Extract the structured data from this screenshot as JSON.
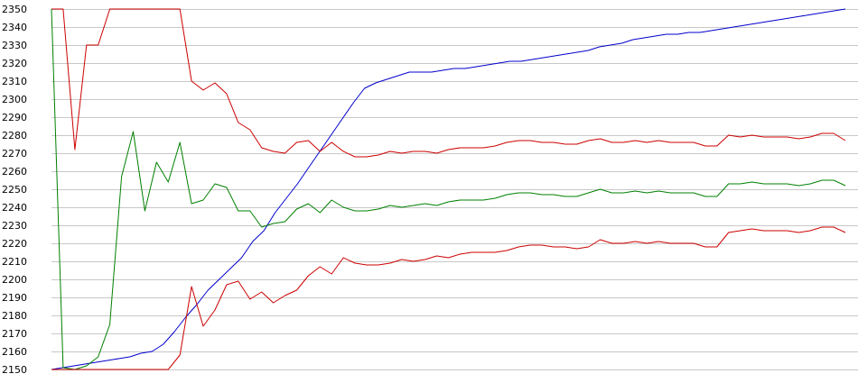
{
  "chart_data": {
    "type": "line",
    "title": "",
    "xlabel": "",
    "ylabel": "",
    "ylim": [
      2150,
      2350
    ],
    "yticks": [
      2150,
      2160,
      2170,
      2180,
      2190,
      2200,
      2210,
      2220,
      2230,
      2240,
      2250,
      2260,
      2270,
      2280,
      2290,
      2300,
      2310,
      2320,
      2330,
      2340,
      2350
    ],
    "xlim": [
      0,
      68
    ],
    "grid": true,
    "legend": "none",
    "series": [
      {
        "color": "#0000cc",
        "values": [
          2150,
          2151,
          2152,
          2153,
          2154,
          2155,
          2156,
          2157,
          2159,
          2160,
          2164,
          2171,
          2179,
          2186,
          2194,
          2200,
          2206,
          2212,
          2221,
          2227,
          2237,
          2245,
          2253,
          2262,
          2271,
          2280,
          2289,
          2298,
          2306,
          2309,
          2311,
          2313,
          2315,
          2315,
          2315,
          2316,
          2317,
          2317,
          2318,
          2319,
          2320,
          2321,
          2321,
          2322,
          2323,
          2324,
          2325,
          2326,
          2327,
          2329,
          2330,
          2331,
          2333,
          2334,
          2335,
          2336,
          2336,
          2337,
          2337,
          2338,
          2339,
          2340,
          2341,
          2342,
          2343,
          2344,
          2345,
          2346,
          2347,
          2348,
          2349,
          2350
        ]
      },
      {
        "color": "#008000",
        "values": [
          2350,
          2151,
          2150,
          2152,
          2157,
          2175,
          2257,
          2282,
          2238,
          2265,
          2254,
          2276,
          2242,
          2244,
          2253,
          2251,
          2238,
          2238,
          2229,
          2231,
          2232,
          2239,
          2242,
          2237,
          2244,
          2240,
          2238,
          2238,
          2239,
          2241,
          2240,
          2241,
          2242,
          2241,
          2243,
          2244,
          2244,
          2244,
          2245,
          2247,
          2248,
          2248,
          2247,
          2247,
          2246,
          2246,
          2248,
          2250,
          2248,
          2248,
          2249,
          2248,
          2249,
          2248,
          2248,
          2248,
          2246,
          2246,
          2253,
          2253,
          2254,
          2253,
          2253,
          2253,
          2252,
          2253,
          2255,
          2255,
          2252
        ]
      },
      {
        "color": "#cc0000",
        "values": [
          2350,
          2350,
          2272,
          2330,
          2330,
          2350,
          2350,
          2350,
          2350,
          2350,
          2350,
          2350,
          2310,
          2305,
          2309,
          2303,
          2287,
          2283,
          2273,
          2271,
          2270,
          2276,
          2277,
          2271,
          2276,
          2271,
          2268,
          2268,
          2269,
          2271,
          2270,
          2271,
          2271,
          2270,
          2272,
          2273,
          2273,
          2273,
          2274,
          2276,
          2277,
          2277,
          2276,
          2276,
          2275,
          2275,
          2277,
          2278,
          2276,
          2276,
          2277,
          2276,
          2277,
          2276,
          2276,
          2276,
          2274,
          2274,
          2280,
          2279,
          2280,
          2279,
          2279,
          2279,
          2278,
          2279,
          2281,
          2281,
          2277
        ]
      },
      {
        "color": "#cc0000",
        "values": [
          2150,
          2150,
          2150,
          2150,
          2150,
          2150,
          2150,
          2150,
          2150,
          2150,
          2150,
          2158,
          2196,
          2174,
          2183,
          2197,
          2199,
          2189,
          2193,
          2187,
          2191,
          2194,
          2202,
          2207,
          2203,
          2212,
          2209,
          2208,
          2208,
          2209,
          2211,
          2210,
          2211,
          2213,
          2212,
          2214,
          2215,
          2215,
          2215,
          2216,
          2218,
          2219,
          2219,
          2218,
          2218,
          2217,
          2218,
          2222,
          2220,
          2220,
          2221,
          2220,
          2221,
          2220,
          2220,
          2220,
          2218,
          2218,
          2226,
          2227,
          2228,
          2227,
          2227,
          2227,
          2226,
          2227,
          2229,
          2229,
          2226
        ]
      }
    ]
  }
}
